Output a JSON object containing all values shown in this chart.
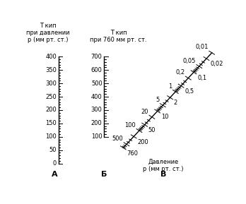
{
  "title_A": "T кип\nпри давлении\nр (мм рт. ст.)",
  "title_B": "T кип\nпри 760 мм рт. ст.",
  "title_C_label": "Давление\nр (мм рт. ст.)",
  "label_A": "А",
  "label_B": "Б",
  "label_C": "В",
  "scale_A_min": 0,
  "scale_A_max": 400,
  "scale_A_ticks": [
    0,
    50,
    100,
    150,
    200,
    250,
    300,
    350,
    400
  ],
  "scale_B_min": 100,
  "scale_B_max": 700,
  "scale_B_ticks": [
    100,
    200,
    300,
    400,
    500,
    600,
    700
  ],
  "scale_C_values": [
    760,
    500,
    200,
    100,
    50,
    20,
    10,
    5,
    2,
    1,
    0.5,
    0.2,
    0.1,
    0.05,
    0.02,
    0.01
  ],
  "scale_C_left_labels": [
    500,
    100,
    20,
    5,
    1,
    0.2,
    0.05,
    0.01
  ],
  "scale_C_right_labels": [
    760,
    200,
    50,
    10,
    2,
    0.5,
    0.1,
    0.02
  ],
  "bg_color": "#ffffff",
  "text_color": "#000000",
  "font_size": 6.0
}
